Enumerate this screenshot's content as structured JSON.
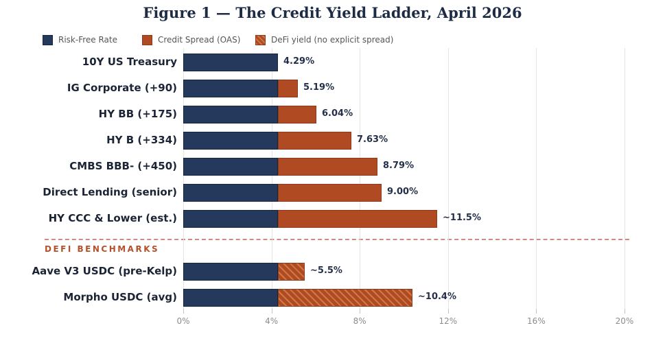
{
  "title": "Figure 1 — The Credit Yield Ladder, April 2026",
  "legend": [
    {
      "label": "Risk-Free Rate",
      "swatch": "solid-navy"
    },
    {
      "label": "Credit Spread (OAS)",
      "swatch": "solid-rust"
    },
    {
      "label": "DeFi yield (no explicit spread)",
      "swatch": "hatched-rust"
    }
  ],
  "defi_section_label": "DEFI BENCHMARKS",
  "colors": {
    "navy": "#24395C",
    "rust": "#B04A23",
    "hatch_stripe": "#CE7946",
    "title": "#1d2b45",
    "defi_heading": "#b4512b",
    "separator": "#d08a80"
  },
  "chart_data": {
    "type": "bar",
    "orientation": "horizontal",
    "title": "Figure 1 — The Credit Yield Ladder, April 2026",
    "xlabel": "",
    "ylabel": "",
    "xlim": [
      0,
      20
    ],
    "grid": true,
    "legend_position": "top-left",
    "x_ticks": [
      {
        "value": 0,
        "label": "0%"
      },
      {
        "value": 4,
        "label": "4%"
      },
      {
        "value": 8,
        "label": "8%"
      },
      {
        "value": 12,
        "label": "12%"
      },
      {
        "value": 16,
        "label": "16%"
      },
      {
        "value": 20,
        "label": "20%"
      }
    ],
    "categories": [
      "10Y US Treasury",
      "IG Corporate (+90)",
      "HY BB (+175)",
      "HY B (+334)",
      "CMBS BBB- (+450)",
      "Direct Lending (senior)",
      "HY CCC & Lower (est.)",
      "Aave V3 USDC (pre-Kelp)",
      "Morpho USDC (avg)"
    ],
    "series": [
      {
        "name": "Risk-Free Rate",
        "style": "solid-navy",
        "values": [
          4.29,
          4.29,
          4.29,
          4.29,
          4.29,
          4.29,
          4.29,
          4.29,
          4.29
        ]
      },
      {
        "name": "Credit Spread (OAS)",
        "style": "solid-rust",
        "values": [
          0,
          0.9,
          1.75,
          3.34,
          4.5,
          4.71,
          7.21,
          0,
          0
        ]
      },
      {
        "name": "DeFi yield (no explicit spread)",
        "style": "hatched-rust",
        "values": [
          0,
          0,
          0,
          0,
          0,
          0,
          0,
          1.21,
          6.11
        ]
      }
    ],
    "totals": [
      4.29,
      5.19,
      6.04,
      7.63,
      8.79,
      9.0,
      11.5,
      5.5,
      10.4
    ],
    "total_labels": [
      "4.29%",
      "5.19%",
      "6.04%",
      "7.63%",
      "8.79%",
      "9.00%",
      "~11.5%",
      "~5.5%",
      "~10.4%"
    ],
    "defi_rows_start_index": 7
  }
}
